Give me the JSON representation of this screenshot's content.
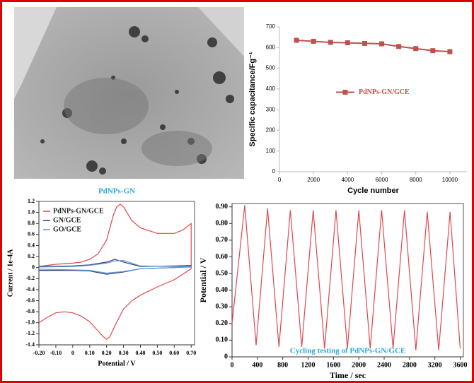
{
  "chart_data": [
    {
      "type": "line",
      "marker": "square",
      "color": "#c0504d",
      "x": [
        1000,
        2000,
        3000,
        4000,
        5000,
        6000,
        7000,
        8000,
        9000,
        10000
      ],
      "series": [
        {
          "name": "PdNPs-GN/GCE",
          "color": "#c0504d",
          "values": [
            635,
            630,
            625,
            623,
            620,
            618,
            605,
            595,
            585,
            580
          ]
        }
      ],
      "xlim": [
        0,
        11000
      ],
      "ylim": [
        0,
        700
      ],
      "xticks": [
        0,
        2000,
        4000,
        6000,
        8000,
        10000
      ],
      "yticks": [
        0,
        100,
        200,
        300,
        400,
        500,
        600,
        700
      ],
      "xlabel": "Cycle number",
      "ylabel": "Specific capacitance/Fg⁻¹",
      "legend": "center"
    },
    {
      "type": "line",
      "title": "PdNPs-GN",
      "series": [
        {
          "name": "PdNPs-GN/GCE",
          "color": "#e0474c",
          "x": [
            -0.2,
            -0.15,
            -0.1,
            -0.05,
            0,
            0.05,
            0.1,
            0.15,
            0.18,
            0.2,
            0.22,
            0.25,
            0.3,
            0.35,
            0.4,
            0.5,
            0.6,
            0.65,
            0.7,
            0.7,
            0.65,
            0.6,
            0.5,
            0.4,
            0.35,
            0.32,
            0.3,
            0.28,
            0.26,
            0.24,
            0.2,
            0.15,
            0.1,
            0.05,
            0,
            -0.1,
            -0.2
          ],
          "values": [
            -1.0,
            -0.9,
            -0.82,
            -0.8,
            -0.82,
            -0.88,
            -0.98,
            -1.15,
            -1.25,
            -1.3,
            -1.25,
            -1.05,
            -0.75,
            -0.6,
            -0.5,
            -0.35,
            -0.22,
            -0.12,
            -0.02,
            0.8,
            0.68,
            0.62,
            0.62,
            0.72,
            0.85,
            1.0,
            1.1,
            1.15,
            1.1,
            0.95,
            0.5,
            0.25,
            0.15,
            0.1,
            0.08,
            0.06,
            0.02
          ]
        },
        {
          "name": "GN/GCE",
          "color": "#3a3a7a",
          "x": [
            -0.2,
            0,
            0.1,
            0.2,
            0.3,
            0.4,
            0.6,
            0.7,
            0.7,
            0.6,
            0.4,
            0.3,
            0.25,
            0.2,
            0.1,
            0,
            -0.2
          ],
          "values": [
            -0.05,
            -0.05,
            -0.06,
            -0.12,
            -0.08,
            -0.02,
            0.0,
            0.02,
            0.04,
            0.03,
            0.02,
            0.1,
            0.15,
            0.1,
            0.05,
            0.03,
            0.02
          ]
        },
        {
          "name": "GO/GCE",
          "color": "#5b9bd5",
          "x": [
            -0.2,
            0,
            0.1,
            0.2,
            0.3,
            0.4,
            0.6,
            0.7,
            0.7,
            0.6,
            0.4,
            0.3,
            0.25,
            0.2,
            0.1,
            0,
            -0.2
          ],
          "values": [
            -0.03,
            -0.04,
            -0.05,
            -0.1,
            -0.07,
            -0.02,
            0,
            0.01,
            0.03,
            0.02,
            0.03,
            0.13,
            0.12,
            0.08,
            0.04,
            0.02,
            0.01
          ]
        }
      ],
      "xlim": [
        -0.2,
        0.72
      ],
      "ylim": [
        -1.4,
        1.2
      ],
      "xticks": [
        {
          "value": -0.2,
          "label": "-0.20"
        },
        {
          "value": -0.1,
          "label": "-0.10"
        },
        0,
        {
          "value": 0.1,
          "label": "0.10"
        },
        {
          "value": 0.2,
          "label": "0.20"
        },
        {
          "value": 0.3,
          "label": "0.30"
        },
        {
          "value": 0.4,
          "label": "0.40"
        },
        {
          "value": 0.5,
          "label": "0.50"
        },
        {
          "value": 0.6,
          "label": "0.60"
        },
        {
          "value": 0.7,
          "label": "0.70"
        }
      ],
      "yticks": [
        {
          "value": 1.2,
          "label": "1.2"
        },
        {
          "value": 1,
          "label": "1.0"
        },
        0.8,
        0.6,
        0.4,
        0.2,
        0,
        -0.2,
        -0.4,
        -0.6,
        -0.8,
        {
          "value": -1,
          "label": "-1.0"
        },
        -1.2,
        -1.4
      ],
      "xlabel": "Potential / V",
      "ylabel": "Current / 1e-4A",
      "legend": "upper-left"
    },
    {
      "type": "line",
      "annotation": "Cycling testing of PdNPs-GN/GCE",
      "series": [
        {
          "name": "PdNPs-GN/GCE",
          "color": "#e0474c",
          "x": [
            0,
            200,
            380,
            560,
            740,
            920,
            1100,
            1280,
            1460,
            1640,
            1820,
            2000,
            2180,
            2360,
            2540,
            2720,
            2900,
            3080,
            3260,
            3440,
            3600
          ],
          "values": [
            0.2,
            0.91,
            0.07,
            0.89,
            0.06,
            0.88,
            0.06,
            0.88,
            0.05,
            0.88,
            0.05,
            0.88,
            0.05,
            0.88,
            0.05,
            0.88,
            0.04,
            0.87,
            0.04,
            0.87,
            0.05
          ]
        }
      ],
      "xlim": [
        0,
        3650
      ],
      "ylim": [
        0,
        0.92
      ],
      "xticks": [
        0,
        400,
        800,
        1200,
        1600,
        2000,
        2400,
        2800,
        3200,
        3600
      ],
      "yticks": [
        0,
        {
          "value": 0.1,
          "label": "0.10"
        },
        {
          "value": 0.2,
          "label": "0.20"
        },
        {
          "value": 0.3,
          "label": "0.30"
        },
        {
          "value": 0.4,
          "label": "0.40"
        },
        {
          "value": 0.5,
          "label": "0.50"
        },
        {
          "value": 0.6,
          "label": "0.60"
        },
        {
          "value": 0.7,
          "label": "0.70"
        },
        {
          "value": 0.8,
          "label": "0.80"
        },
        {
          "value": 0.9,
          "label": "0.90"
        }
      ],
      "xlabel": "Time / sec",
      "ylabel": "Potential / V"
    }
  ]
}
